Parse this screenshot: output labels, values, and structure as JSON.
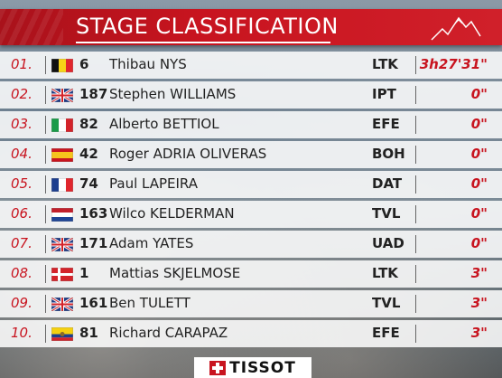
{
  "header": {
    "title": "STAGE CLASSIFICATION"
  },
  "rows": [
    {
      "pos": "01.",
      "flag": "belgium-flag",
      "bib": "6",
      "name": "Thibau NYS",
      "team": "LTK",
      "gap": "3h27'31\""
    },
    {
      "pos": "02.",
      "flag": "uk-flag",
      "bib": "187",
      "name": "Stephen WILLIAMS",
      "team": "IPT",
      "gap": "0\""
    },
    {
      "pos": "03.",
      "flag": "italy-flag",
      "bib": "82",
      "name": "Alberto BETTIOL",
      "team": "EFE",
      "gap": "0\""
    },
    {
      "pos": "04.",
      "flag": "spain-flag",
      "bib": "42",
      "name": "Roger ADRIA OLIVERAS",
      "team": "BOH",
      "gap": "0\""
    },
    {
      "pos": "05.",
      "flag": "france-flag",
      "bib": "74",
      "name": "Paul LAPEIRA",
      "team": "DAT",
      "gap": "0\""
    },
    {
      "pos": "06.",
      "flag": "netherlands-flag",
      "bib": "163",
      "name": "Wilco KELDERMAN",
      "team": "TVL",
      "gap": "0\""
    },
    {
      "pos": "07.",
      "flag": "uk-flag",
      "bib": "171",
      "name": "Adam YATES",
      "team": "UAD",
      "gap": "0\""
    },
    {
      "pos": "08.",
      "flag": "denmark-flag",
      "bib": "1",
      "name": "Mattias SKJELMOSE",
      "team": "LTK",
      "gap": "3\""
    },
    {
      "pos": "09.",
      "flag": "uk-flag",
      "bib": "161",
      "name": "Ben TULETT",
      "team": "TVL",
      "gap": "3\""
    },
    {
      "pos": "10.",
      "flag": "ecuador-flag",
      "bib": "81",
      "name": "Richard CARAPAZ",
      "team": "EFE",
      "gap": "3\""
    }
  ],
  "sponsor": {
    "name": "TISSOT",
    "icon": "swiss-cross-icon"
  },
  "colors": {
    "accent": "#c8141f",
    "row_bg": "#ffffff"
  }
}
